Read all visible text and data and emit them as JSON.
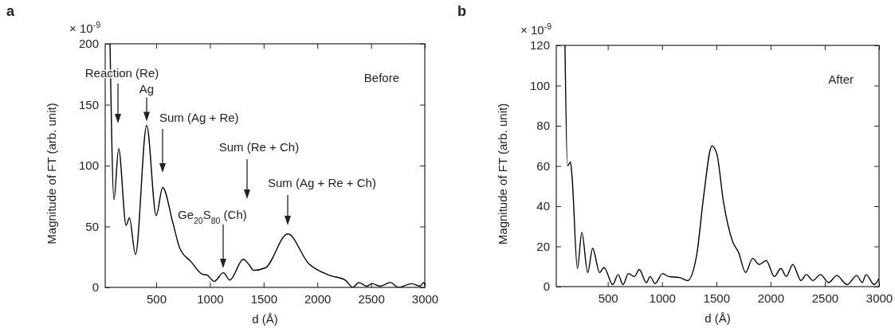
{
  "chart_data": [
    {
      "type": "line",
      "title": "a",
      "xlabel": "d (Å)",
      "ylabel": "Magnitude of FT (arb. unit)",
      "xlim": [
        25,
        3000
      ],
      "xticks": [
        500,
        1000,
        1500,
        2000,
        2500,
        3000
      ],
      "ylim": [
        0,
        200
      ],
      "yticks": [
        0,
        50,
        100,
        150,
        200
      ],
      "grid": false,
      "marker": "none",
      "line_style": "solid",
      "series": [
        {
          "color": "#000000",
          "x": [
            70,
            107,
            150,
            220,
            250,
            307,
            411,
            500,
            560,
            655,
            720,
            825,
            925,
            975,
            1040,
            1125,
            1185,
            1310,
            1370,
            1405,
            1515,
            1725,
            1915,
            2110,
            2260,
            2330,
            2385,
            2460,
            2510,
            2585,
            2680,
            2755,
            2880,
            2955,
            2990,
            3000
          ],
          "values": [
            200,
            72,
            114,
            51,
            57,
            27,
            133,
            59,
            82,
            53,
            32,
            21,
            11,
            10,
            5,
            12,
            6,
            23,
            18,
            14,
            16,
            44,
            20,
            10,
            6,
            0,
            4,
            1,
            3,
            1,
            4,
            0,
            3,
            1,
            4,
            2
          ]
        }
      ],
      "annotations": [
        "× 10$^{-9}$",
        "Before",
        "Reaction (Re)",
        {
          "text": "Ag",
          "x": 411,
          "y": 133
        },
        "Sum (Ag + Re)",
        "Sum (Re + Ch)",
        "Ge$_{20}$S$_{80}$ (Ch)",
        "Sum (Ag + Re + Ch)"
      ]
    },
    {
      "type": "line",
      "title": "b",
      "xlabel": "d (Å)",
      "ylabel": "Magnitude of FT (arb. unit)",
      "xlim": [
        25,
        3000
      ],
      "xticks": [
        500,
        1000,
        1500,
        2000,
        2500,
        3000
      ],
      "ylim": [
        0,
        120
      ],
      "yticks": [
        0,
        20,
        40,
        60,
        80,
        100,
        120
      ],
      "grid": false,
      "marker": "none",
      "line_style": "solid",
      "series": [
        {
          "color": "#000000",
          "x": [
            105,
            128,
            155,
            170,
            220,
            260,
            315,
            360,
            425,
            465,
            545,
            595,
            640,
            690,
            745,
            790,
            855,
            890,
            935,
            1005,
            1060,
            1160,
            1235,
            1320,
            1380,
            1460,
            1505,
            1565,
            1650,
            1705,
            1770,
            1835,
            1895,
            1960,
            2035,
            2095,
            2145,
            2205,
            2280,
            2330,
            2390,
            2460,
            2535,
            2610,
            2705,
            2795,
            2845,
            2880,
            2955,
            3000
          ],
          "values": [
            120,
            60,
            62,
            55,
            9,
            27,
            7,
            19,
            7,
            9.5,
            1,
            6,
            1,
            6.5,
            5,
            8.5,
            2,
            5,
            1.5,
            6.5,
            5,
            4.5,
            3,
            16,
            43.5,
            70,
            66,
            42.5,
            22.5,
            17,
            7,
            14,
            11,
            13,
            5,
            9,
            5,
            11,
            3,
            6,
            3,
            6,
            2,
            5.5,
            1,
            5.5,
            2,
            6,
            1,
            4
          ]
        }
      ],
      "annotations": [
        "× 10$^{-9}$",
        "After"
      ]
    }
  ]
}
